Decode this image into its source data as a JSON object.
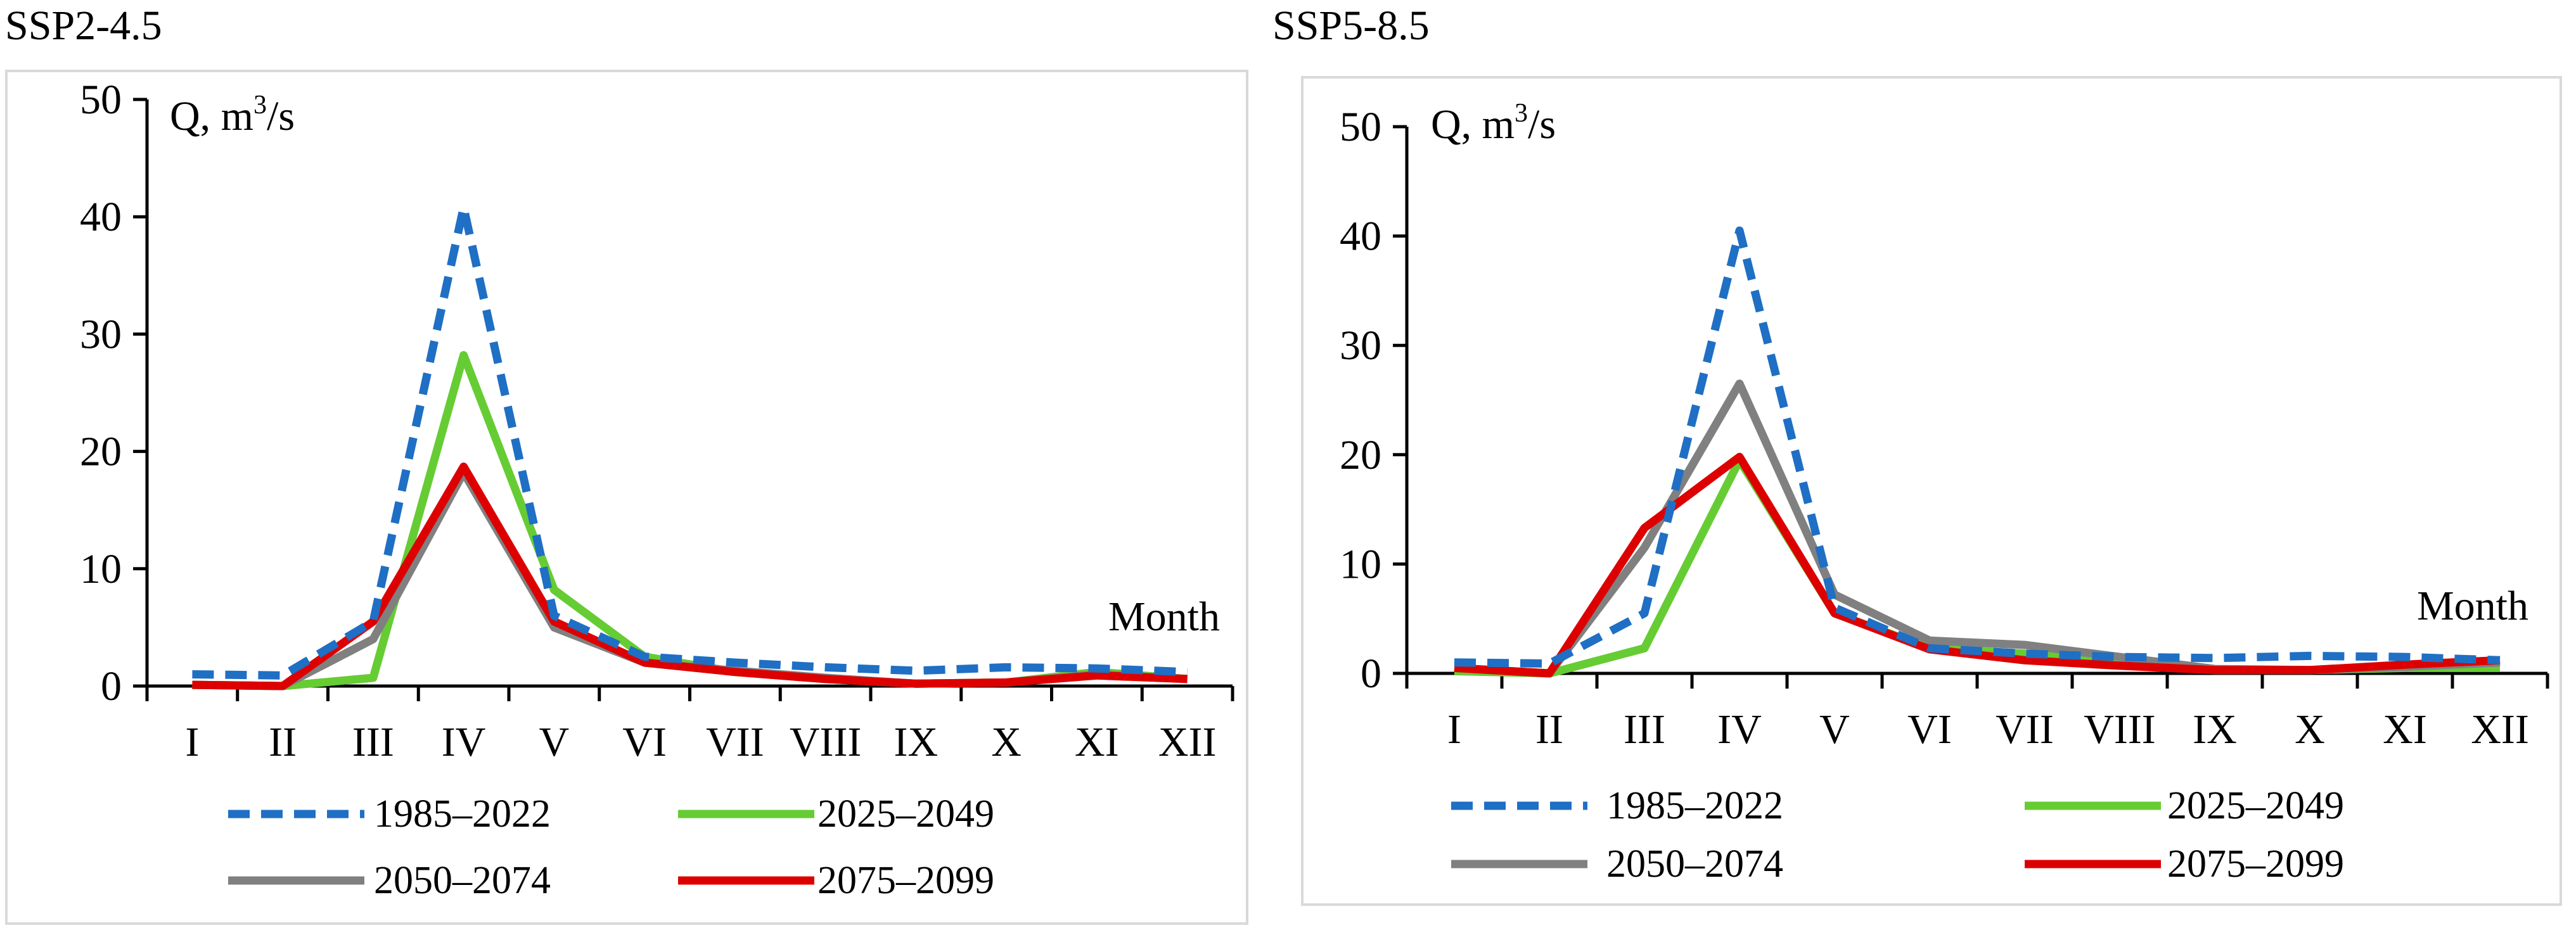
{
  "chart_data": [
    {
      "type": "line",
      "title": "SSP2-4.5",
      "ylabel_main": "Q, m",
      "ylabel_sup": "3",
      "ylabel_tail": "/s",
      "xlabel": "Month",
      "ylim": [
        0,
        50
      ],
      "yticks": [
        0,
        10,
        20,
        30,
        40,
        50
      ],
      "categories": [
        "I",
        "II",
        "III",
        "IV",
        "V",
        "VI",
        "VII",
        "VIII",
        "IX",
        "X",
        "XI",
        "XII"
      ],
      "series": [
        {
          "name": "1985–2022",
          "color": "#1f6fc4",
          "dash": true,
          "values": [
            1.0,
            0.9,
            5.5,
            40.8,
            6.0,
            2.5,
            2.0,
            1.6,
            1.3,
            1.6,
            1.5,
            1.2
          ]
        },
        {
          "name": "2025–2049",
          "color": "#66cc33",
          "dash": false,
          "values": [
            0.1,
            0.0,
            0.7,
            28.2,
            8.2,
            2.5,
            1.2,
            0.6,
            0.2,
            0.3,
            1.2,
            0.6
          ]
        },
        {
          "name": "2050–2074",
          "color": "#808080",
          "dash": false,
          "values": [
            0.1,
            0.0,
            4.0,
            18.2,
            5.0,
            2.0,
            1.3,
            0.7,
            0.2,
            0.3,
            1.0,
            0.6
          ]
        },
        {
          "name": "2075–2099",
          "color": "#dd0000",
          "dash": false,
          "values": [
            0.1,
            0.0,
            5.5,
            18.7,
            5.5,
            2.0,
            1.2,
            0.6,
            0.2,
            0.3,
            0.9,
            0.6
          ]
        }
      ]
    },
    {
      "type": "line",
      "title": "SSP5-8.5",
      "ylabel_main": "Q, m",
      "ylabel_sup": "3",
      "ylabel_tail": "/s",
      "xlabel": "Month",
      "ylim": [
        0,
        50
      ],
      "yticks": [
        0,
        10,
        20,
        30,
        40,
        50
      ],
      "categories": [
        "I",
        "II",
        "III",
        "IV",
        "V",
        "VI",
        "VII",
        "VIII",
        "IX",
        "X",
        "XI",
        "XII"
      ],
      "series": [
        {
          "name": "1985–2022",
          "color": "#1f6fc4",
          "dash": true,
          "values": [
            1.0,
            0.9,
            5.5,
            40.5,
            6.0,
            2.3,
            1.8,
            1.5,
            1.4,
            1.6,
            1.5,
            1.2
          ]
        },
        {
          "name": "2025–2049",
          "color": "#66cc33",
          "dash": false,
          "values": [
            0.2,
            0.0,
            2.3,
            19.5,
            5.5,
            2.3,
            1.8,
            1.0,
            0.3,
            0.3,
            0.5,
            0.5
          ]
        },
        {
          "name": "2050–2074",
          "color": "#808080",
          "dash": false,
          "values": [
            0.5,
            0.0,
            11.5,
            26.5,
            7.2,
            3.0,
            2.6,
            1.5,
            0.4,
            0.3,
            0.6,
            1.0
          ]
        },
        {
          "name": "2075–2099",
          "color": "#dd0000",
          "dash": false,
          "values": [
            0.5,
            0.0,
            13.3,
            19.8,
            5.5,
            2.2,
            1.2,
            0.7,
            0.3,
            0.3,
            0.8,
            1.2
          ]
        }
      ]
    }
  ]
}
